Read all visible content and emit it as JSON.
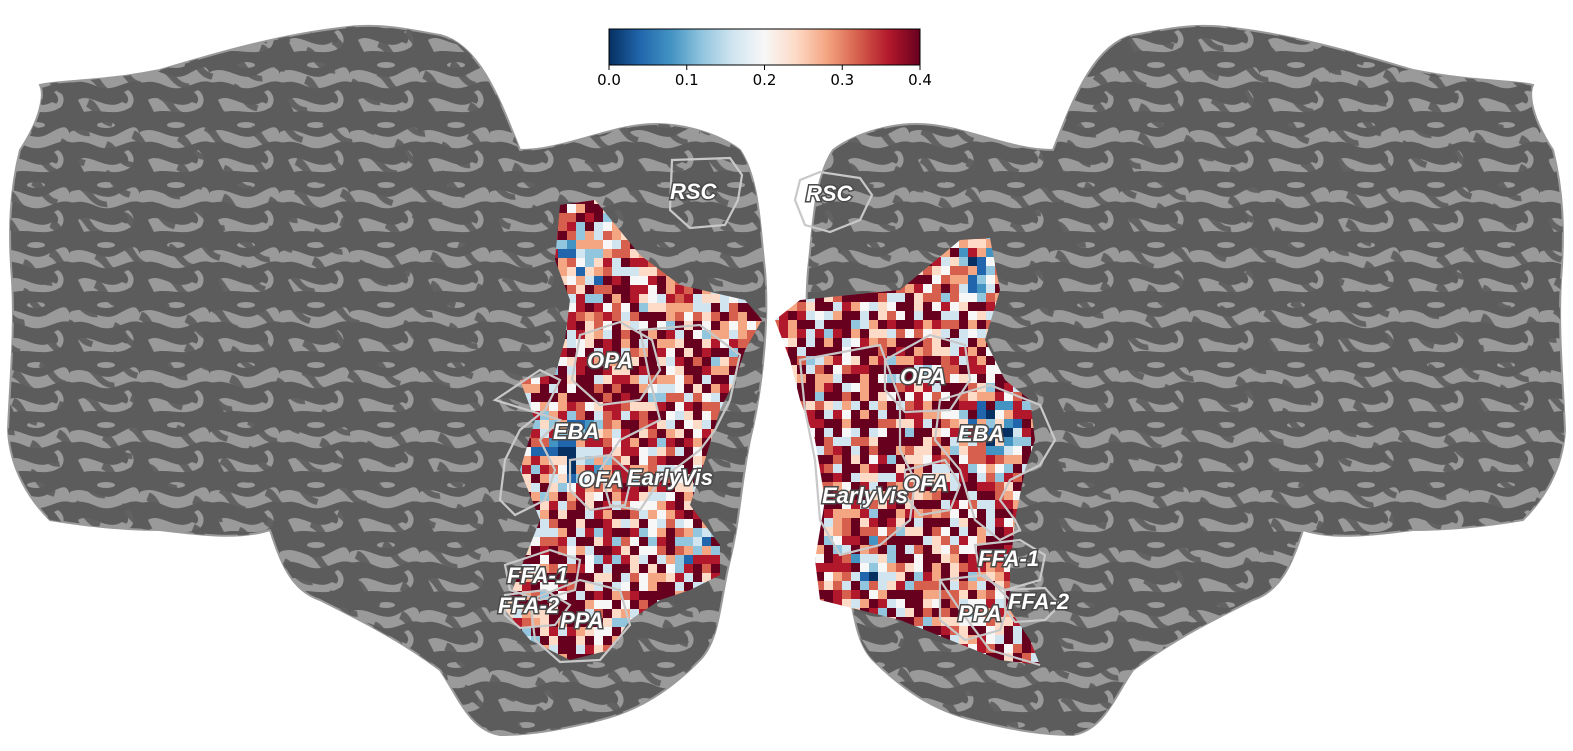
{
  "figure": {
    "hemispheres": [
      "left",
      "right"
    ],
    "value_range": [
      0.0,
      0.4
    ],
    "colormap": [
      "#053061",
      "#2166ac",
      "#4393c3",
      "#92c5de",
      "#d1e5f0",
      "#f7f7f7",
      "#fddbc7",
      "#f4a582",
      "#d6604d",
      "#b2182b",
      "#67001f"
    ],
    "colorbar": {
      "ticks": [
        "0.0",
        "0.1",
        "0.2",
        "0.3",
        "0.4"
      ]
    },
    "surface_colors": {
      "gyri": "#9a9a9a",
      "sulci": "#5c5c5c",
      "roi_outline": "#c8c8c8"
    },
    "rois": {
      "left": [
        "RSC",
        "OPA",
        "EBA",
        "OFA",
        "EarlyVis",
        "FFA-1",
        "FFA-2",
        "PPA"
      ],
      "right": [
        "RSC",
        "OPA",
        "EBA",
        "EarlyVis",
        "OFA",
        "FFA-1",
        "PPA",
        "FFA-2"
      ]
    }
  }
}
